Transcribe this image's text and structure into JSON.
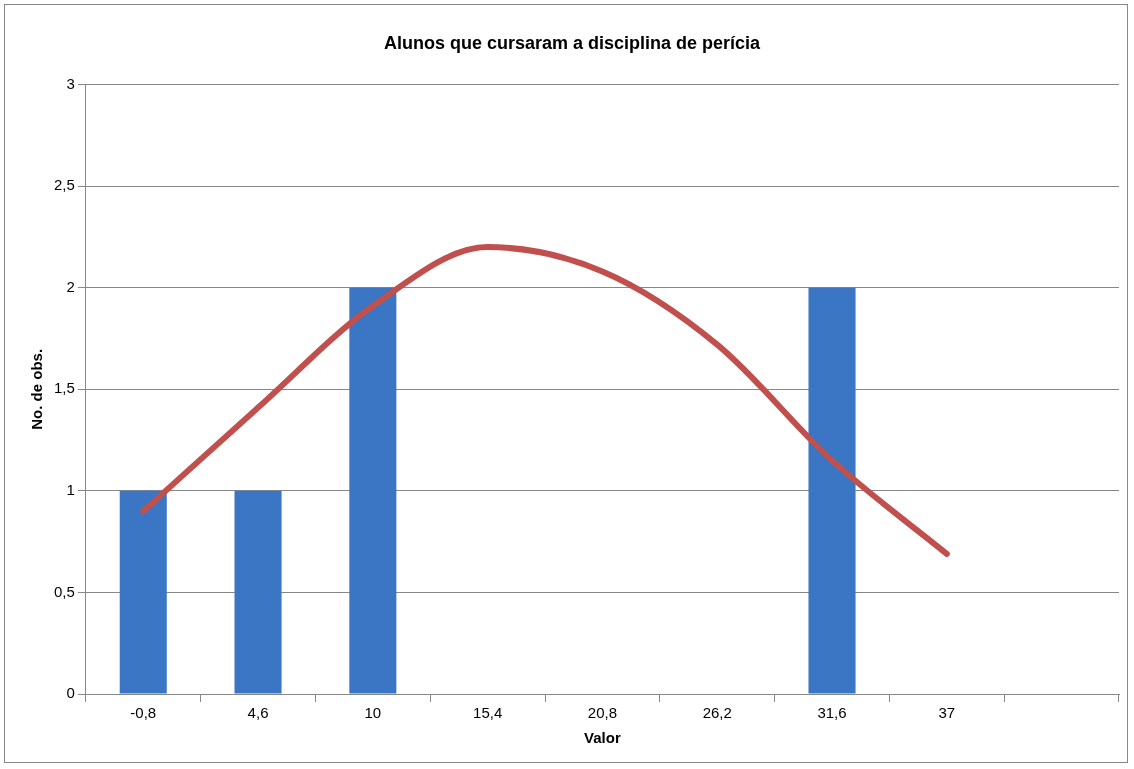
{
  "chart_data": {
    "type": "bar",
    "title": "Alunos que cursaram a disciplina de perícia",
    "xlabel": "Valor",
    "ylabel": "No. de obs.",
    "categories": [
      "-0,8",
      "4,6",
      "10",
      "15,4",
      "20,8",
      "26,2",
      "31,6",
      "37",
      null
    ],
    "series": [
      {
        "color": "#3a76c4",
        "values": [
          1,
          1,
          2,
          0,
          0,
          0,
          2,
          0,
          null
        ]
      },
      {
        "type": "line",
        "color": "#c0504d",
        "values": [
          0.9,
          1.41,
          1.91,
          2.2,
          2.08,
          1.72,
          1.15,
          0.69,
          null
        ]
      }
    ],
    "ylim": [
      0,
      3
    ],
    "yticks": [
      0,
      {
        "value": 0.5,
        "label": "0,5"
      },
      1,
      {
        "value": 1.5,
        "label": "1,5"
      },
      2,
      {
        "value": 2.5,
        "label": "2,5"
      },
      3
    ],
    "grid": "y",
    "legend": false,
    "marker": "none",
    "line_style": "solid"
  }
}
